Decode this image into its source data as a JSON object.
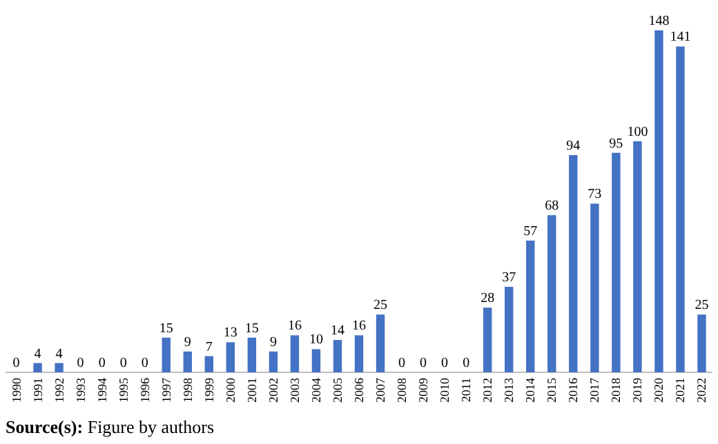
{
  "chart_data": {
    "type": "bar",
    "categories": [
      "1990",
      "1991",
      "1992",
      "1993",
      "1994",
      "1995",
      "1996",
      "1997",
      "1998",
      "1999",
      "2000",
      "2001",
      "2002",
      "2003",
      "2004",
      "2005",
      "2006",
      "2007",
      "2008",
      "2009",
      "2010",
      "2011",
      "2012",
      "2013",
      "2014",
      "2015",
      "2016",
      "2017",
      "2018",
      "2019",
      "2020",
      "2021",
      "2022"
    ],
    "values": [
      0,
      4,
      4,
      0,
      0,
      0,
      0,
      15,
      9,
      7,
      13,
      15,
      9,
      16,
      10,
      14,
      16,
      25,
      0,
      0,
      0,
      0,
      28,
      37,
      57,
      68,
      94,
      73,
      95,
      100,
      148,
      141,
      25
    ],
    "color": "#4472c4",
    "data_labels": true,
    "annotations": [
      "Source(s): Figure by authors"
    ]
  }
}
